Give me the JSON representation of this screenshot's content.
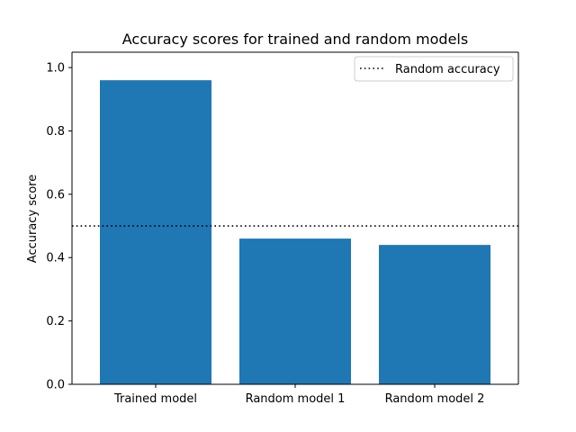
{
  "chart_data": {
    "type": "bar",
    "title": "Accuracy scores for trained and random models",
    "xlabel": "",
    "ylabel": "Accuracy score",
    "categories": [
      "Trained model",
      "Random model 1",
      "Random model 2"
    ],
    "values": [
      0.96,
      0.46,
      0.44
    ],
    "ylim": [
      0,
      1.0
    ],
    "yticks": [
      "0.0",
      "0.2",
      "0.4",
      "0.6",
      "0.8",
      "1.0"
    ],
    "bar_color": "#1f77b4",
    "grid": false,
    "reference_line": {
      "label": "Random accuracy",
      "value": 0.5,
      "style": "dotted",
      "color": "#000000"
    },
    "legend": {
      "placement": "top-right",
      "entries": [
        "Random accuracy"
      ]
    }
  }
}
